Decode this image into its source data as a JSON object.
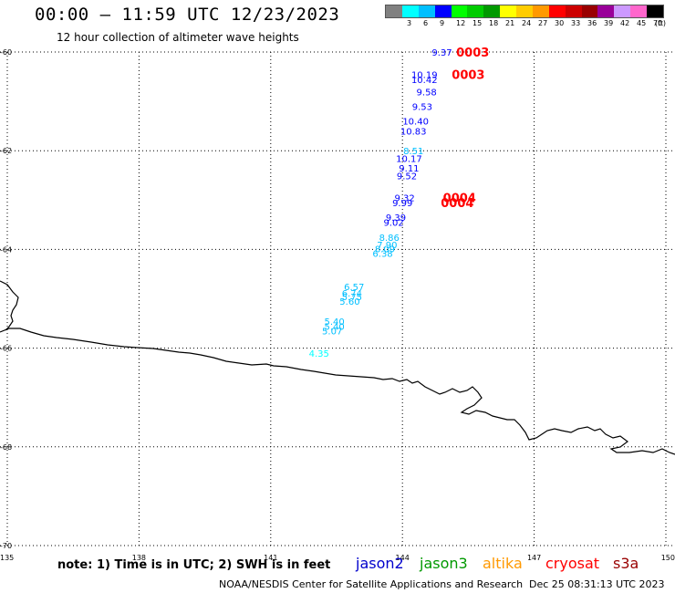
{
  "header": {
    "title": "00:00 – 11:59 UTC 12/23/2023",
    "subtitle": "12 hour collection of altimeter wave heights"
  },
  "legend": {
    "swatches": [
      {
        "color": "#808080",
        "label": ""
      },
      {
        "color": "#00ffff",
        "label": "3"
      },
      {
        "color": "#00bfff",
        "label": "6"
      },
      {
        "color": "#0000ff",
        "label": "9"
      },
      {
        "color": "#00ff00",
        "label": "12"
      },
      {
        "color": "#00cc00",
        "label": "15"
      },
      {
        "color": "#009900",
        "label": "18"
      },
      {
        "color": "#ffff00",
        "label": "21"
      },
      {
        "color": "#ffcc00",
        "label": "24"
      },
      {
        "color": "#ff9900",
        "label": "27"
      },
      {
        "color": "#ff0000",
        "label": "30"
      },
      {
        "color": "#cc0000",
        "label": "33"
      },
      {
        "color": "#990000",
        "label": "36"
      },
      {
        "color": "#990099",
        "label": "39"
      },
      {
        "color": "#cc99ff",
        "label": "42"
      },
      {
        "color": "#ff66cc",
        "label": "45"
      },
      {
        "color": "#000000",
        "label": "70"
      }
    ],
    "unit": "(ft)"
  },
  "map": {
    "lon_ticks": [
      "135",
      "138",
      "141",
      "144",
      "147",
      "150"
    ],
    "lat_ticks": [
      "-60",
      "-62",
      "-64",
      "-66",
      "-68",
      "-70"
    ],
    "wave_heights": [
      {
        "text": "9.37",
        "lon": 144.9,
        "lat": -60.0,
        "color": "#0000ff"
      },
      {
        "text": "10.19",
        "lon": 144.5,
        "lat": -60.45,
        "color": "#0000ff"
      },
      {
        "text": "10.42",
        "lon": 144.5,
        "lat": -60.55,
        "color": "#0000ff"
      },
      {
        "text": "9.58",
        "lon": 144.55,
        "lat": -60.8,
        "color": "#0000ff"
      },
      {
        "text": "9.53",
        "lon": 144.45,
        "lat": -61.1,
        "color": "#0000ff"
      },
      {
        "text": "10.40",
        "lon": 144.3,
        "lat": -61.4,
        "color": "#0000ff"
      },
      {
        "text": "10.83",
        "lon": 144.25,
        "lat": -61.6,
        "color": "#0000ff"
      },
      {
        "text": "8.51",
        "lon": 144.25,
        "lat": -62.0,
        "color": "#00bfff"
      },
      {
        "text": "10.17",
        "lon": 144.15,
        "lat": -62.15,
        "color": "#0000ff"
      },
      {
        "text": "9.11",
        "lon": 144.15,
        "lat": -62.35,
        "color": "#0000ff"
      },
      {
        "text": "9.52",
        "lon": 144.1,
        "lat": -62.5,
        "color": "#0000ff"
      },
      {
        "text": "9.32",
        "lon": 144.05,
        "lat": -62.95,
        "color": "#0000ff"
      },
      {
        "text": "9.99",
        "lon": 144.0,
        "lat": -63.05,
        "color": "#0000ff"
      },
      {
        "text": "9.39",
        "lon": 143.85,
        "lat": -63.35,
        "color": "#0000ff"
      },
      {
        "text": "9.02",
        "lon": 143.8,
        "lat": -63.45,
        "color": "#0000ff"
      },
      {
        "text": "8.86",
        "lon": 143.7,
        "lat": -63.75,
        "color": "#00bfff"
      },
      {
        "text": "7.90",
        "lon": 143.65,
        "lat": -63.9,
        "color": "#00bfff"
      },
      {
        "text": "8.09",
        "lon": 143.6,
        "lat": -63.98,
        "color": "#00bfff"
      },
      {
        "text": "6.38",
        "lon": 143.55,
        "lat": -64.08,
        "color": "#00bfff"
      },
      {
        "text": "6.57",
        "lon": 142.9,
        "lat": -64.75,
        "color": "#00bfff"
      },
      {
        "text": "6.74",
        "lon": 142.85,
        "lat": -64.88,
        "color": "#00bfff"
      },
      {
        "text": "5.75",
        "lon": 142.85,
        "lat": -64.95,
        "color": "#00bfff"
      },
      {
        "text": "5.60",
        "lon": 142.8,
        "lat": -65.05,
        "color": "#00bfff"
      },
      {
        "text": "5.40",
        "lon": 142.45,
        "lat": -65.45,
        "color": "#00bfff"
      },
      {
        "text": "5.40",
        "lon": 142.45,
        "lat": -65.55,
        "color": "#00bfff"
      },
      {
        "text": "5.07",
        "lon": 142.4,
        "lat": -65.65,
        "color": "#00bfff"
      },
      {
        "text": "4.35",
        "lon": 142.1,
        "lat": -66.1,
        "color": "#00ffff"
      }
    ],
    "times": [
      {
        "text": "0003",
        "lon": 145.6,
        "lat": -60.0,
        "color": "#ff0000"
      },
      {
        "text": "0003",
        "lon": 145.5,
        "lat": -60.45,
        "color": "#ff0000"
      },
      {
        "text": "0004",
        "lon": 145.3,
        "lat": -62.95,
        "color": "#ff0000"
      },
      {
        "text": "0004",
        "lon": 145.25,
        "lat": -63.05,
        "color": "#ff0000"
      }
    ]
  },
  "notes": {
    "note": "note: 1) Time is in UTC; 2) SWH is in feet",
    "satellites": [
      {
        "name": "jason2",
        "color": "#0000cc"
      },
      {
        "name": "jason3",
        "color": "#009900"
      },
      {
        "name": "altika",
        "color": "#ff9900"
      },
      {
        "name": "cryosat",
        "color": "#ff0000"
      },
      {
        "name": "s3a",
        "color": "#990000"
      }
    ]
  },
  "footer": {
    "credit": "NOAA/NESDIS Center for Satellite Applications and Research",
    "timestamp": "Dec 25 08:31:13 UTC 2023"
  }
}
